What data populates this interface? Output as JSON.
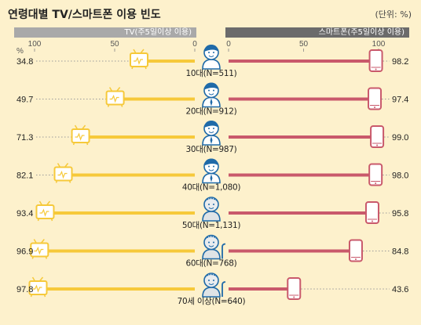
{
  "title": "연령대별 TV/스마트폰 이용 빈도",
  "unit_label": "(단위: %)",
  "header": {
    "tv_label": "TV(주5일이상 이용)",
    "smartphone_label": "스마트폰(주5일이상 이용)"
  },
  "colors": {
    "tv": "#f6c93a",
    "smartphone": "#c9596b",
    "background": "#fdf1cc",
    "face": "#1f6aa8"
  },
  "chart_data": {
    "type": "bar",
    "layout": "back-to-back horizontal",
    "pct_symbol": "%",
    "tv_axis": {
      "ticks": [
        "100",
        "50",
        "0"
      ],
      "range": [
        100,
        0
      ]
    },
    "smartphone_axis": {
      "ticks": [
        "0",
        "50",
        "100"
      ],
      "range": [
        0,
        100
      ]
    },
    "categories": [
      "10대(N=511)",
      "20대(N=912)",
      "30대(N=987)",
      "40대(N=1,080)",
      "50대(N=1,131)",
      "60대(N=768)",
      "70세 이상(N=640)"
    ],
    "series": [
      {
        "name": "TV(주5일이상 이용)",
        "values": [
          34.8,
          49.7,
          71.3,
          82.1,
          93.4,
          96.9,
          97.8
        ]
      },
      {
        "name": "스마트폰(주5일이상 이용)",
        "values": [
          98.2,
          97.4,
          99.0,
          98.0,
          95.8,
          84.8,
          43.6
        ]
      }
    ],
    "tv_labels": [
      "34.8",
      "49.7",
      "71.3",
      "82.1",
      "93.4",
      "96.9",
      "97.8"
    ],
    "smartphone_labels": [
      "98.2",
      "97.4",
      "99.0",
      "98.0",
      "95.8",
      "84.8",
      "43.6"
    ]
  }
}
